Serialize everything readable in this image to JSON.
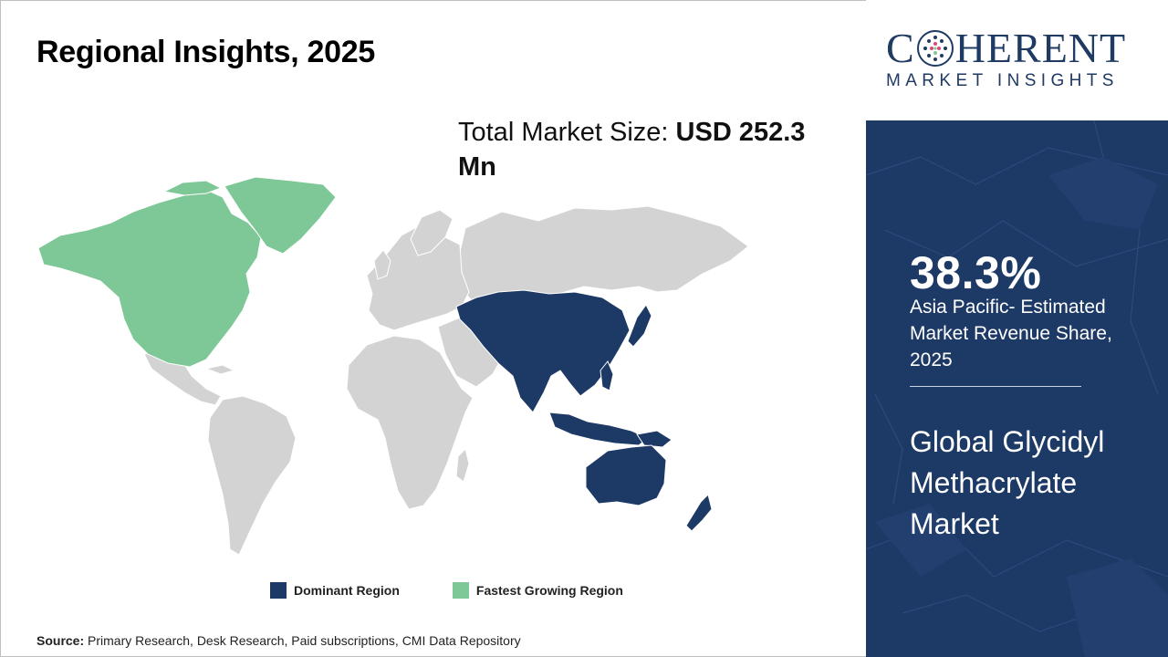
{
  "header": {
    "title": "Regional Insights, 2025"
  },
  "market_size": {
    "label": "Total Market Size: ",
    "value": "USD 252.3 Mn"
  },
  "map": {
    "regions": {
      "dominant": "Asia Pacific",
      "fastest_growing": "North America",
      "other": "Rest of World"
    },
    "colors": {
      "dominant": "#1d3966",
      "fastest_growing": "#7dc896",
      "other": "#d3d3d3"
    }
  },
  "legend": {
    "items": [
      {
        "label": "Dominant Region",
        "color": "#1d3966"
      },
      {
        "label": "Fastest Growing Region",
        "color": "#7dc896"
      }
    ]
  },
  "source": {
    "label": "Source:",
    "text": " Primary Research, Desk Research, Paid subscriptions, CMI Data Repository"
  },
  "brand": {
    "name_start": "C",
    "name_end": "HERENT",
    "tagline": "MARKET INSIGHTS",
    "logo_icon": "globe-dots-icon",
    "color": "#1f3a63"
  },
  "panel": {
    "share_value": "38.3%",
    "share_label": "Asia Pacific- Estimated Market Revenue Share, 2025",
    "market_name": "Global Glycidyl Methacrylate Market",
    "background": "#1d3966"
  }
}
